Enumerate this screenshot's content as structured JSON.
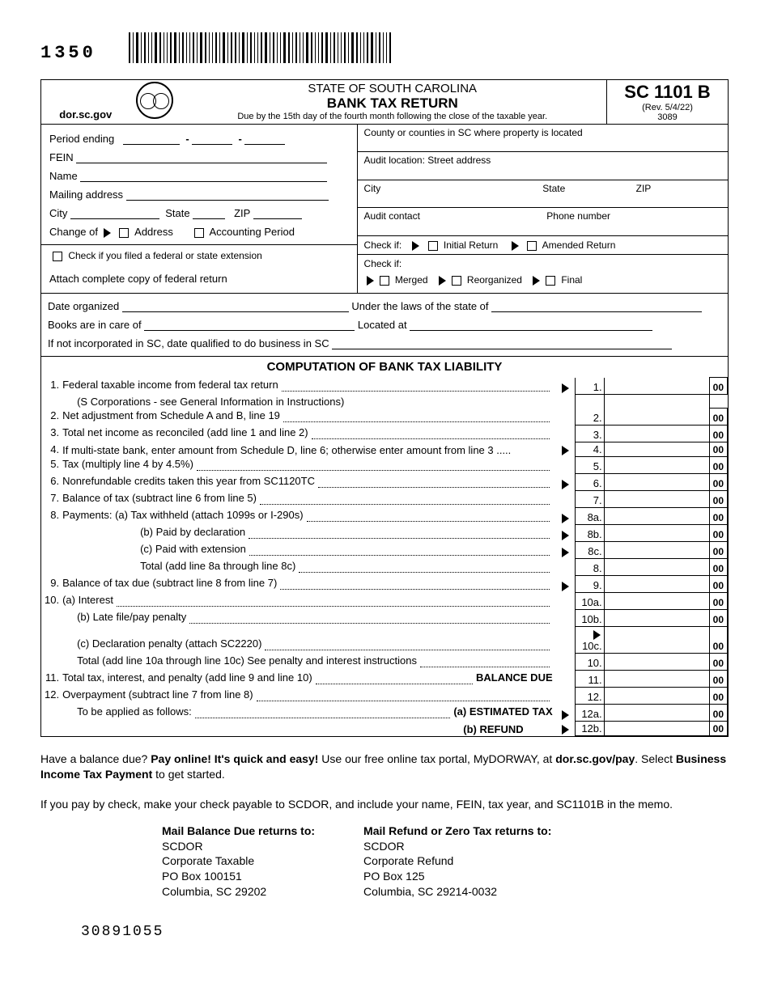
{
  "header": {
    "form_code_top": "1350",
    "website": "dor.sc.gov",
    "state_line": "STATE OF SOUTH CAROLINA",
    "title": "BANK TAX RETURN",
    "due_line": "Due by the 15th day of the fourth month following the close of the taxable year.",
    "form_id": "SC 1101 B",
    "revision": "(Rev. 5/4/22)",
    "code_under_rev": "3089"
  },
  "left_fields": {
    "period_ending": "Period ending",
    "fein": "FEIN",
    "name": "Name",
    "mailing": "Mailing address",
    "city": "City",
    "state": "State",
    "zip": "ZIP",
    "change_of": "Change of",
    "address": "Address",
    "accounting_period": "Accounting Period",
    "extension": "Check if you filed a federal or state extension",
    "attach": "Attach complete copy of federal return"
  },
  "right_fields": {
    "county": "County or counties in SC where property is located",
    "audit_loc": "Audit location: Street address",
    "city": "City",
    "state": "State",
    "zip": "ZIP",
    "audit_contact": "Audit contact",
    "phone": "Phone number",
    "check_if": "Check if:",
    "initial": "Initial Return",
    "amended": "Amended Return",
    "check_if2": "Check if:",
    "merged": "Merged",
    "reorganized": "Reorganized",
    "final": "Final"
  },
  "org_info": {
    "date_org": "Date organized",
    "under_laws": "Under the laws of the state of",
    "books": "Books are in care of",
    "located": "Located at",
    "not_inc": "If not incorporated in SC, date qualified to do business in SC"
  },
  "computation": {
    "title": "COMPUTATION OF BANK TAX LIABILITY",
    "cents": "00",
    "lines": [
      {
        "n": "1.",
        "num": "1.",
        "text": "Federal taxable income from federal tax return",
        "tri": true,
        "indent": 0
      },
      {
        "n": "",
        "num": "",
        "text": "(S Corporations - see General Information in Instructions)",
        "tri": false,
        "indent": 1,
        "no_amount": true
      },
      {
        "n": "2.",
        "num": "2.",
        "text": "Net adjustment from Schedule A and B, line 19",
        "tri": false,
        "indent": 0
      },
      {
        "n": "3.",
        "num": "3.",
        "text": "Total net income as reconciled (add line 1 and line 2)",
        "tri": false,
        "indent": 0
      },
      {
        "n": "4.",
        "num": "4.",
        "text": "If multi-state bank, enter amount from Schedule D, line 6; otherwise enter amount from line 3 .....",
        "tri": true,
        "indent": 0,
        "nodots": true
      },
      {
        "n": "5.",
        "num": "5.",
        "text": "Tax (multiply line 4 by 4.5%)",
        "tri": false,
        "indent": 0
      },
      {
        "n": "6.",
        "num": "6.",
        "text": "Nonrefundable credits taken this year from SC1120TC",
        "tri": true,
        "indent": 0
      },
      {
        "n": "7.",
        "num": "7.",
        "text": "Balance of tax (subtract line 6 from line 5)",
        "tri": false,
        "indent": 0
      },
      {
        "n": "8.",
        "num": "8a.",
        "text": "Payments: (a) Tax withheld (attach 1099s or I-290s)",
        "tri": true,
        "indent": 0
      },
      {
        "n": "",
        "num": "8b.",
        "text": "(b) Paid by declaration",
        "tri": true,
        "indent": 2
      },
      {
        "n": "",
        "num": "8c.",
        "text": "(c) Paid with extension",
        "tri": true,
        "indent": 2
      },
      {
        "n": "",
        "num": "8.",
        "text": "Total (add line 8a through line 8c)",
        "tri": false,
        "indent": 2
      },
      {
        "n": "9.",
        "num": "9.",
        "text": "Balance of tax due (subtract line 8 from line 7)",
        "tri": true,
        "indent": 0
      },
      {
        "n": "10.",
        "num": "10a.",
        "text": "(a) Interest",
        "tri": false,
        "indent": 0
      },
      {
        "n": "",
        "num": "10b.",
        "text": "(b) Late file/pay penalty",
        "tri": false,
        "indent": 1
      },
      {
        "n": "",
        "num": "10c.",
        "text": "(c) Declaration penalty (attach SC2220)",
        "tri": true,
        "indent": 1,
        "tri_inside": true
      },
      {
        "n": "",
        "num": "10.",
        "text": "Total (add line 10a through line 10c) See penalty and interest instructions",
        "tri": false,
        "indent": 1
      },
      {
        "n": "11.",
        "num": "11.",
        "text": "Total tax, interest, and penalty (add line 9 and line 10)",
        "tri": false,
        "indent": 0,
        "suffix": "BALANCE DUE",
        "suffix_bold": true
      },
      {
        "n": "12.",
        "num": "12.",
        "text": "Overpayment (subtract line 7 from line 8)",
        "tri": false,
        "indent": 0
      },
      {
        "n": "",
        "num": "12a.",
        "text": "To be applied as follows:",
        "tri": true,
        "indent": 1,
        "suffix": "(a) ESTIMATED TAX",
        "suffix_bold": true,
        "tri_after": true
      },
      {
        "n": "",
        "num": "12b.",
        "text": "",
        "tri": true,
        "indent": 0,
        "suffix": "(b) REFUND",
        "suffix_bold": true,
        "tri_after": true,
        "right_align": true
      }
    ]
  },
  "footer": {
    "p1a": "Have a balance due? ",
    "p1b": "Pay online! It's quick and easy!",
    "p1c": " Use our free online tax portal, MyDORWAY, at ",
    "p1d": "dor.sc.gov/pay",
    "p1e": ". Select ",
    "p1f": "Business Income Tax Payment",
    "p1g": " to get started.",
    "p2": "If you pay by check, make your check payable to SCDOR, and include your name, FEIN, tax year, and SC1101B in the memo.",
    "mail_due": {
      "h": "Mail Balance Due returns to:",
      "l1": "SCDOR",
      "l2": "Corporate Taxable",
      "l3": "PO Box 100151",
      "l4": "Columbia, SC 29202"
    },
    "mail_refund": {
      "h": "Mail Refund or Zero Tax returns to:",
      "l1": "SCDOR",
      "l2": "Corporate Refund",
      "l3": "PO Box 125",
      "l4": "Columbia, SC 29214-0032"
    },
    "bottom_code": "30891055"
  }
}
